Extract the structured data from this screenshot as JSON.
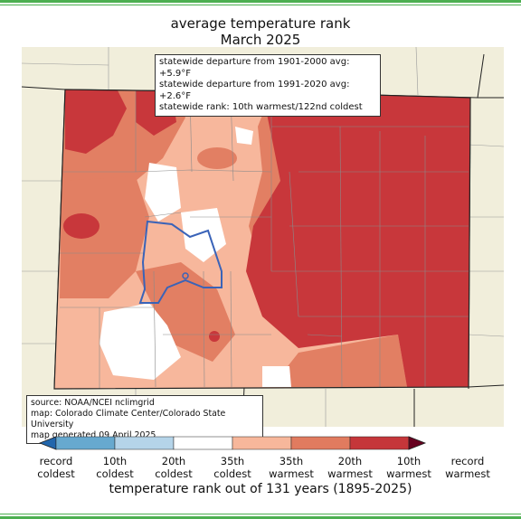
{
  "title": {
    "line1": "average temperature rank",
    "line2": "March 2025"
  },
  "stats": {
    "line1": "statewide departure from 1901-2000 avg: +5.9°F",
    "line2": "statewide departure from 1991-2020 avg: +2.6°F",
    "line3": "statewide rank: 10th warmest/122nd coldest"
  },
  "source": {
    "line1": "source: NOAA/NCEI nclimgrid",
    "line2": "map: Colorado Climate Center/Colorado State University",
    "line3": "map generated 09 April 2025"
  },
  "legend": {
    "title": "temperature rank out of 131 years (1895-2025)",
    "categories": [
      {
        "label1": "record",
        "label2": "coldest",
        "color": "#2166ac"
      },
      {
        "label1": "10th",
        "label2": "coldest",
        "color": "#67a9cf"
      },
      {
        "label1": "20th",
        "label2": "coldest",
        "color": "#b5d4e9"
      },
      {
        "label1": "35th",
        "label2": "coldest",
        "color": "#ffffff"
      },
      {
        "label1": "35th",
        "label2": "warmest",
        "color": "#f7b79b"
      },
      {
        "label1": "20th",
        "label2": "warmest",
        "color": "#e17b5f"
      },
      {
        "label1": "10th",
        "label2": "warmest",
        "color": "#c5363a"
      },
      {
        "label1": "record",
        "label2": "warmest",
        "color": "#67001f"
      }
    ]
  },
  "map_colors": {
    "background": "#f1eedb",
    "record_warm_to_10th": "#c8373b",
    "warm_10_20": "#e27f63",
    "warm_20_35": "#f7b79c",
    "near_normal": "#ffffff",
    "outline": "#3a63b8"
  }
}
